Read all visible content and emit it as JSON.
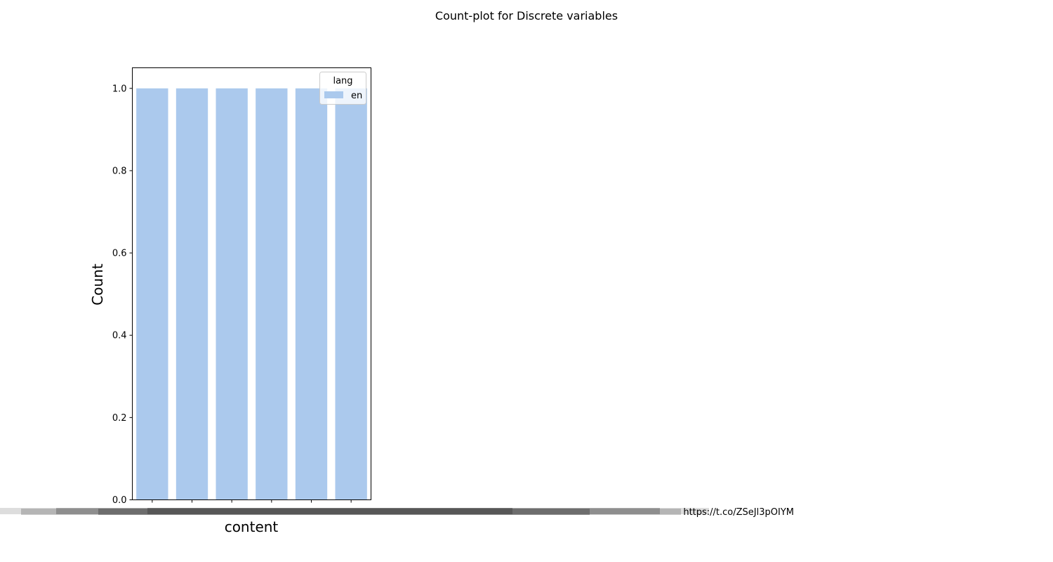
{
  "figure": {
    "suptitle": "Count-plot for Discrete variables"
  },
  "chart_data": {
    "type": "bar",
    "title": "",
    "xlabel": "content",
    "ylabel": "Count",
    "ylim": [
      0,
      1.05
    ],
    "yticks": [
      "0.0",
      "0.2",
      "0.4",
      "0.6",
      "0.8",
      "1.0"
    ],
    "categories": [
      "",
      "",
      "",
      "",
      "",
      ""
    ],
    "tick_label_overlap_text": "https://t.co/ZSeJl3pOIYM",
    "series": [
      {
        "name": "en",
        "values": [
          1,
          1,
          1,
          1,
          1,
          1
        ],
        "color": "#abc9ed"
      }
    ],
    "legend": {
      "title": "lang",
      "entries": [
        "en"
      ],
      "position": "top-right"
    },
    "grid": false
  }
}
